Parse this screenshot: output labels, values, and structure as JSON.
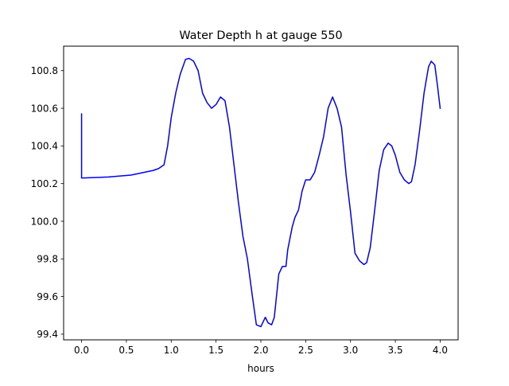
{
  "chart_data": {
    "type": "line",
    "title": "Water Depth h at gauge 550",
    "xlabel": "hours",
    "ylabel": "",
    "xlim": [
      -0.2,
      4.2
    ],
    "ylim": [
      99.37,
      100.93
    ],
    "xticks": [
      0.0,
      0.5,
      1.0,
      1.5,
      2.0,
      2.5,
      3.0,
      3.5,
      4.0
    ],
    "xtick_labels": [
      "0.0",
      "0.5",
      "1.0",
      "1.5",
      "2.0",
      "2.5",
      "3.0",
      "3.5",
      "4.0"
    ],
    "yticks": [
      99.4,
      99.6,
      99.8,
      100.0,
      100.2,
      100.4,
      100.6,
      100.8
    ],
    "ytick_labels": [
      "99.4",
      "99.6",
      "99.8",
      "100.0",
      "100.2",
      "100.4",
      "100.6",
      "100.8"
    ],
    "grid": false,
    "line_color": "#0000ff",
    "series": [
      {
        "x": [
          0.0,
          0.0,
          0.01,
          0.3,
          0.55,
          0.6,
          0.7,
          0.8,
          0.86,
          0.92,
          0.96,
          1.0,
          1.05,
          1.1,
          1.16,
          1.2,
          1.25,
          1.3,
          1.35,
          1.4,
          1.45,
          1.5,
          1.55,
          1.6,
          1.65,
          1.7,
          1.75,
          1.8,
          1.85,
          1.9,
          1.95,
          2.0,
          2.02,
          2.05,
          2.08,
          2.12,
          2.15,
          2.2,
          2.24,
          2.28,
          2.3,
          2.35,
          2.38,
          2.42,
          2.46,
          2.5,
          2.55,
          2.6,
          2.65,
          2.7,
          2.75,
          2.8,
          2.85,
          2.9,
          2.95,
          3.0,
          3.05,
          3.1,
          3.15,
          3.18,
          3.22,
          3.27,
          3.32,
          3.37,
          3.42,
          3.46,
          3.5,
          3.55,
          3.6,
          3.65,
          3.68,
          3.72,
          3.77,
          3.82,
          3.87,
          3.9,
          3.94,
          3.97,
          4.0
        ],
        "y": [
          100.57,
          100.23,
          100.23,
          100.235,
          100.245,
          100.25,
          100.26,
          100.27,
          100.28,
          100.3,
          100.4,
          100.55,
          100.68,
          100.78,
          100.86,
          100.865,
          100.85,
          100.8,
          100.68,
          100.63,
          100.6,
          100.62,
          100.66,
          100.64,
          100.5,
          100.3,
          100.1,
          99.92,
          99.8,
          99.62,
          99.45,
          99.44,
          99.46,
          99.49,
          99.46,
          99.45,
          99.49,
          99.72,
          99.76,
          99.76,
          99.85,
          99.97,
          100.02,
          100.06,
          100.16,
          100.22,
          100.22,
          100.26,
          100.35,
          100.45,
          100.6,
          100.66,
          100.6,
          100.5,
          100.25,
          100.05,
          99.83,
          99.79,
          99.77,
          99.78,
          99.86,
          100.06,
          100.27,
          100.38,
          100.415,
          100.4,
          100.35,
          100.26,
          100.22,
          100.2,
          100.21,
          100.3,
          100.48,
          100.68,
          100.82,
          100.85,
          100.83,
          100.72,
          100.6
        ]
      }
    ]
  }
}
